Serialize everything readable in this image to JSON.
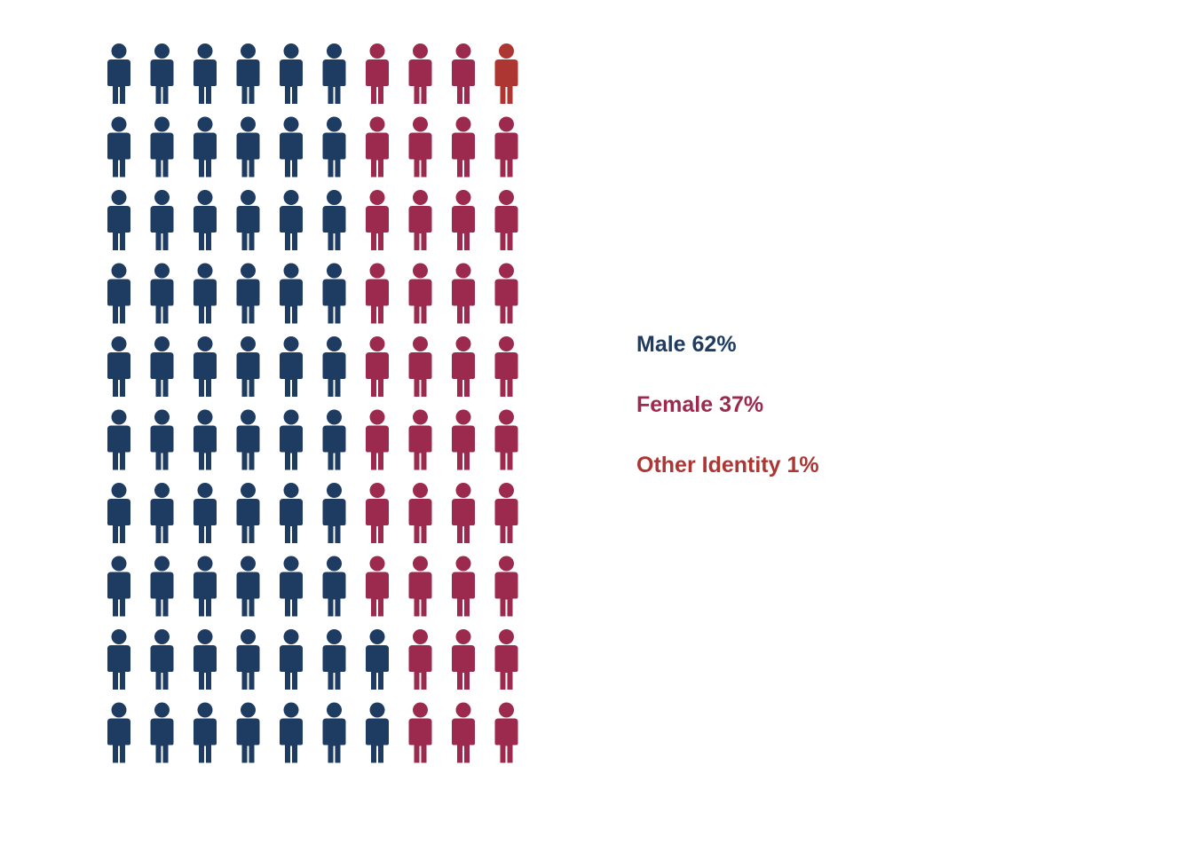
{
  "chart_data": {
    "type": "waffle",
    "title": "",
    "grid": {
      "rows": 10,
      "columns": 10,
      "fill_order": "column-major"
    },
    "total_icons": 100,
    "icon": "person-icon",
    "categories": [
      {
        "name": "Male",
        "value": 62,
        "label": "Male 62%",
        "color": "#1e3c62"
      },
      {
        "name": "Female",
        "value": 37,
        "label": "Female 37%",
        "color": "#9b2a4e"
      },
      {
        "name": "Other Identity",
        "value": 1,
        "label": "Other Identity 1%",
        "color": "#ad3532"
      }
    ],
    "legend_position": "right"
  }
}
